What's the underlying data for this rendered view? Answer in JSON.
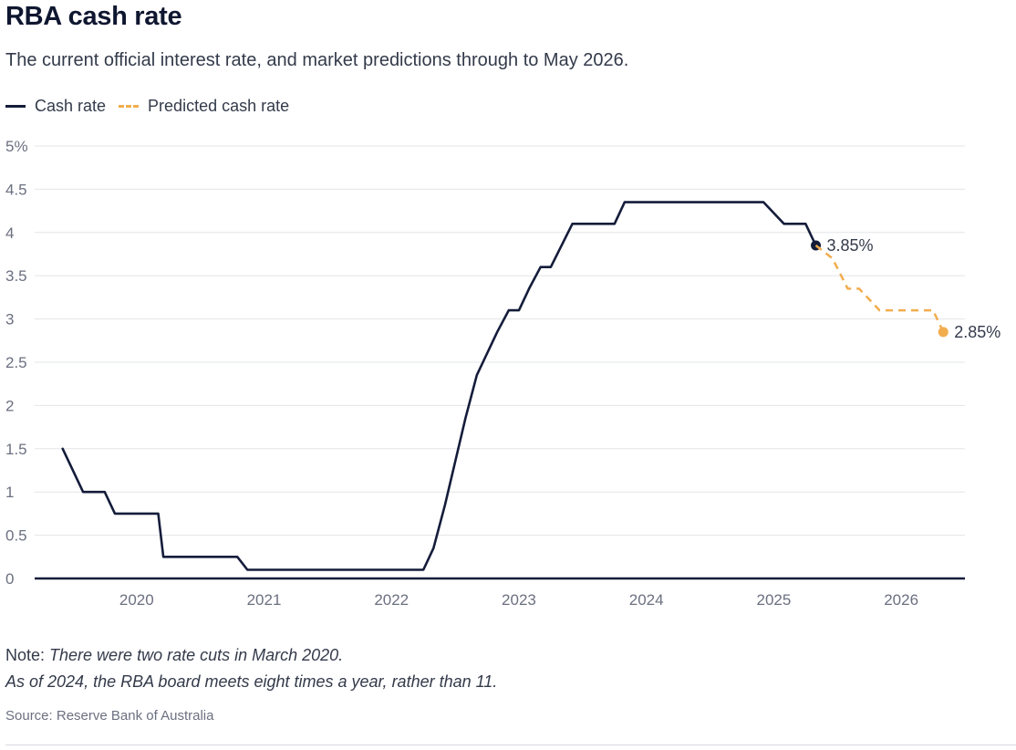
{
  "header": {
    "title": "RBA cash rate",
    "subtitle": "The current official interest rate, and market predictions through to May 2026."
  },
  "legend": {
    "cash": "Cash rate",
    "predicted": "Predicted cash rate"
  },
  "notes": {
    "prefix": "Note: ",
    "line1": "There were two rate cuts in March 2020.",
    "line2": "As of 2024, the RBA board meets eight times a year, rather than 11."
  },
  "source": "Source: Reserve Bank of Australia",
  "colors": {
    "cash": "#141c3a",
    "predicted": "#f2ad4f",
    "grid": "#e3e5e8",
    "axis": "#141c3a",
    "tick": "#6b7080"
  },
  "chart_data": {
    "type": "line",
    "title": "RBA cash rate",
    "xlabel": "",
    "ylabel": "",
    "xlim": [
      2019.2,
      2026.5
    ],
    "ylim": [
      0,
      5
    ],
    "grid": true,
    "legend_position": "top-left",
    "x_ticks": [
      2020,
      2021,
      2022,
      2023,
      2024,
      2025,
      2026
    ],
    "y_ticks": [
      {
        "value": 0,
        "label": "0"
      },
      {
        "value": 0.5,
        "label": "0.5"
      },
      {
        "value": 1,
        "label": "1"
      },
      {
        "value": 1.5,
        "label": "1.5"
      },
      {
        "value": 2,
        "label": "2"
      },
      {
        "value": 2.5,
        "label": "2.5"
      },
      {
        "value": 3,
        "label": "3"
      },
      {
        "value": 3.5,
        "label": "3.5"
      },
      {
        "value": 4,
        "label": "4"
      },
      {
        "value": 4.5,
        "label": "4.5"
      },
      {
        "value": 5,
        "label": "5%"
      }
    ],
    "series": [
      {
        "name": "Cash rate",
        "style": "solid",
        "points": [
          [
            2019.42,
            1.5
          ],
          [
            2019.58,
            1.0
          ],
          [
            2019.75,
            1.0
          ],
          [
            2019.83,
            0.75
          ],
          [
            2020.04,
            0.75
          ],
          [
            2020.17,
            0.75
          ],
          [
            2020.21,
            0.25
          ],
          [
            2020.71,
            0.25
          ],
          [
            2020.79,
            0.25
          ],
          [
            2020.87,
            0.1
          ],
          [
            2022.25,
            0.1
          ],
          [
            2022.33,
            0.35
          ],
          [
            2022.42,
            0.85
          ],
          [
            2022.5,
            1.35
          ],
          [
            2022.58,
            1.85
          ],
          [
            2022.67,
            2.35
          ],
          [
            2022.75,
            2.6
          ],
          [
            2022.83,
            2.85
          ],
          [
            2022.92,
            3.1
          ],
          [
            2023.0,
            3.1
          ],
          [
            2023.08,
            3.35
          ],
          [
            2023.17,
            3.6
          ],
          [
            2023.25,
            3.6
          ],
          [
            2023.42,
            4.1
          ],
          [
            2023.75,
            4.1
          ],
          [
            2023.83,
            4.35
          ],
          [
            2024.92,
            4.35
          ],
          [
            2025.08,
            4.1
          ],
          [
            2025.25,
            4.1
          ],
          [
            2025.33,
            3.85
          ]
        ],
        "end_label": "3.85%"
      },
      {
        "name": "Predicted cash rate",
        "style": "dashed",
        "points": [
          [
            2025.33,
            3.85
          ],
          [
            2025.46,
            3.7
          ],
          [
            2025.58,
            3.35
          ],
          [
            2025.67,
            3.35
          ],
          [
            2025.83,
            3.1
          ],
          [
            2026.25,
            3.1
          ],
          [
            2026.33,
            2.85
          ]
        ],
        "end_label": "2.85%"
      }
    ]
  }
}
